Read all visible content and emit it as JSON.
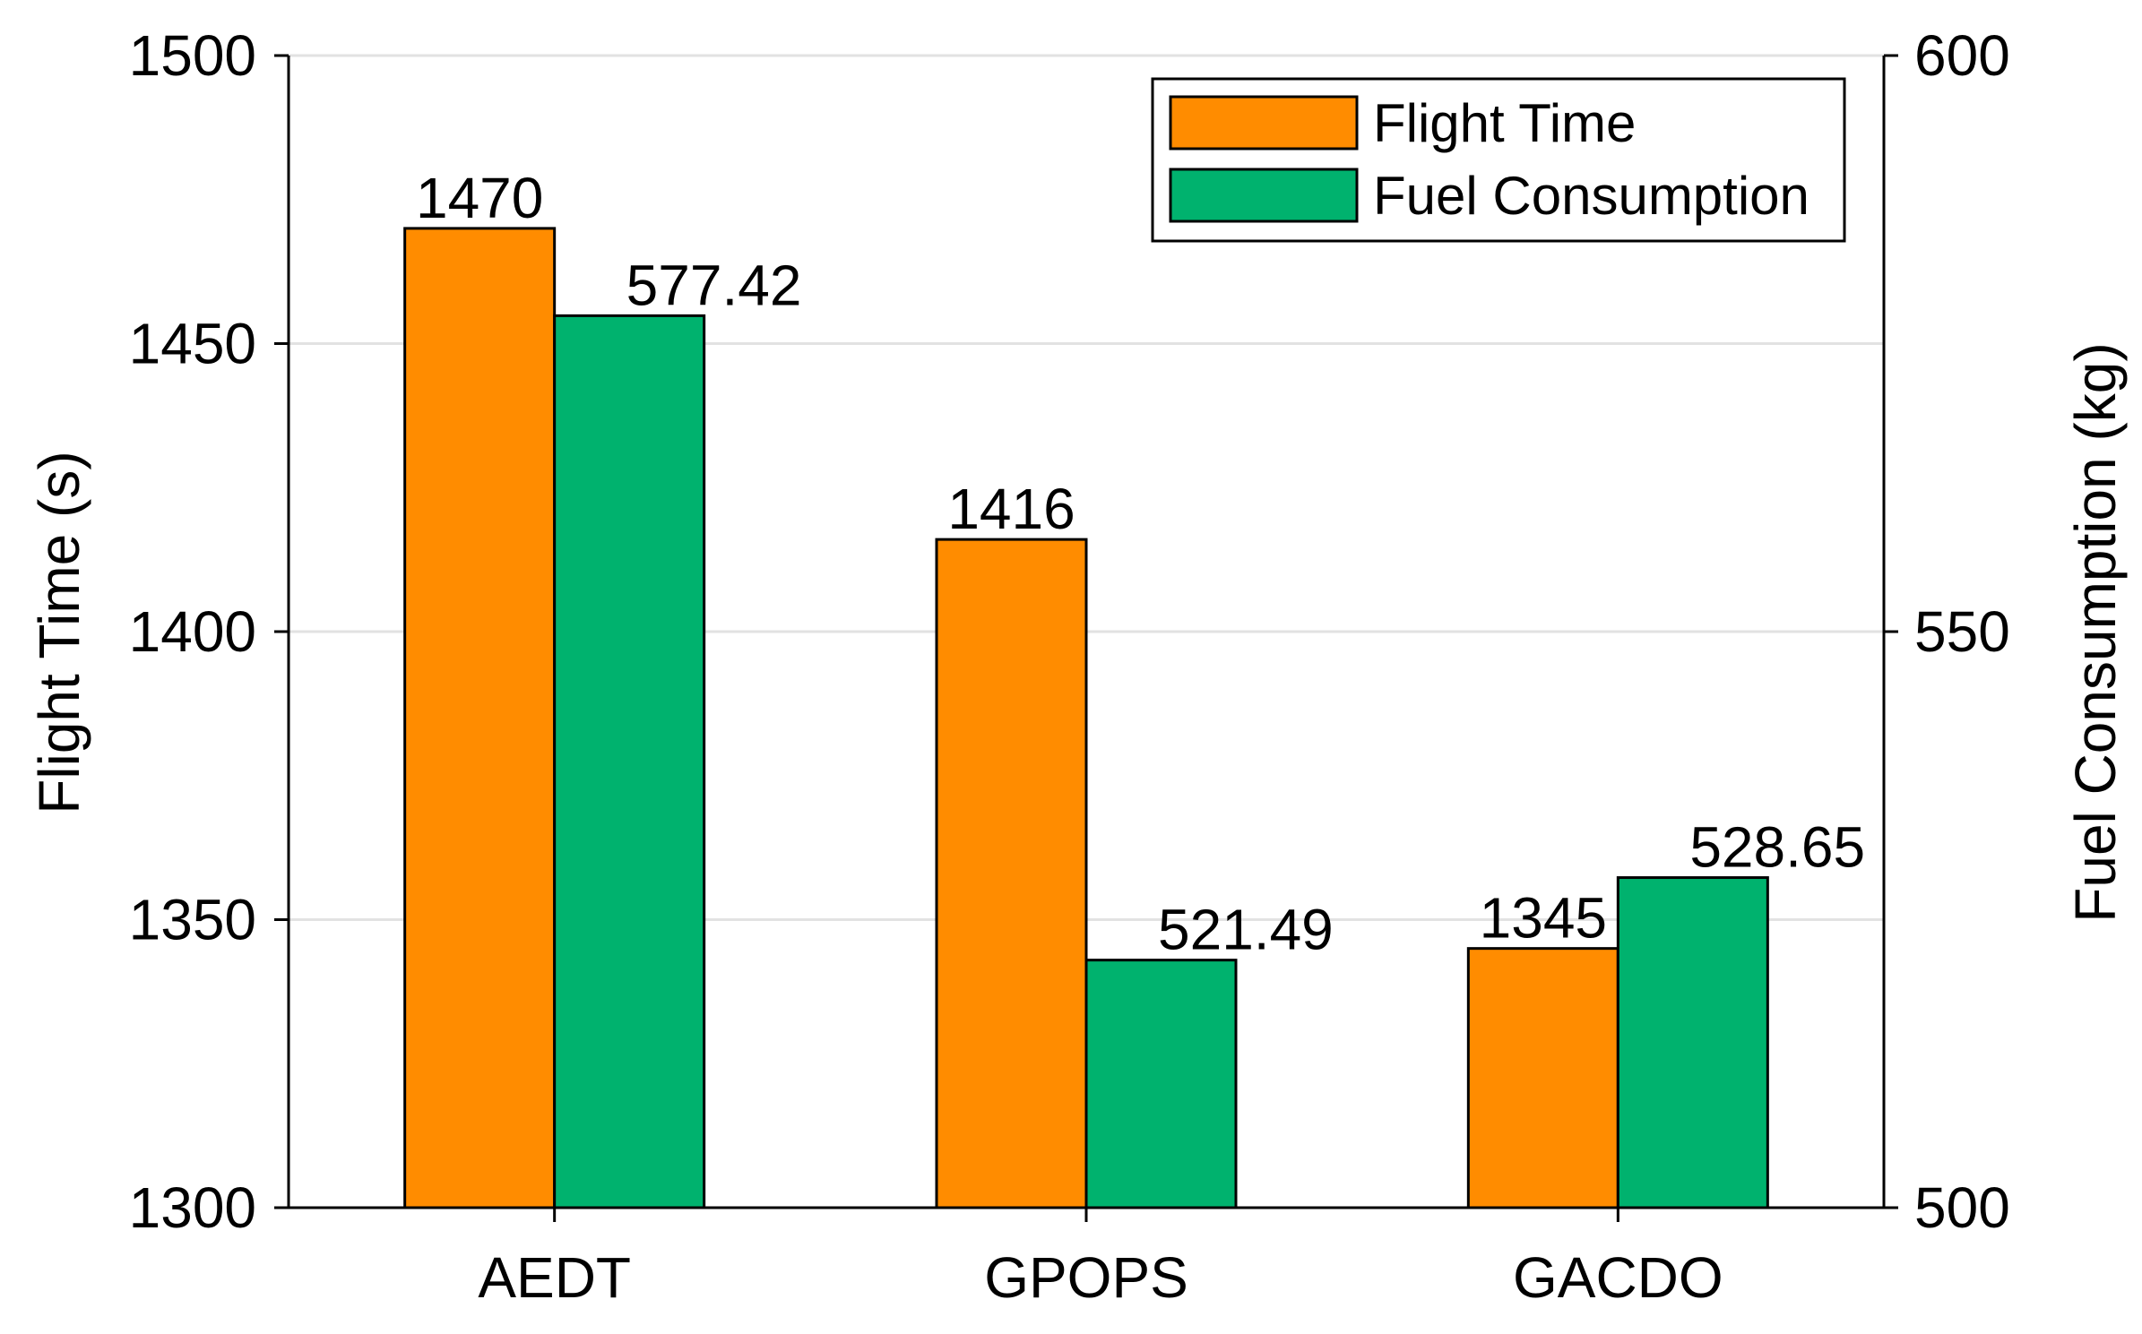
{
  "chart_data": {
    "type": "bar",
    "categories": [
      "AEDT",
      "GPOPS",
      "GACDO"
    ],
    "series": [
      {
        "name": "Flight Time",
        "axis": "left",
        "color": "#FF8C00",
        "values": [
          1470,
          1416,
          1345
        ],
        "labels": [
          "1470",
          "1416",
          "1345"
        ]
      },
      {
        "name": "Fuel Consumption",
        "axis": "right",
        "color": "#00B26E",
        "values": [
          577.42,
          521.49,
          528.65
        ],
        "labels": [
          "577.42",
          "521.49",
          "528.65"
        ]
      }
    ],
    "y_left": {
      "label": "Flight Time (s)",
      "ylim": [
        1300,
        1500
      ],
      "ticks": [
        1300,
        1350,
        1400,
        1450,
        1500
      ],
      "tick_labels": [
        "1300",
        "1350",
        "1400",
        "1450",
        "1500"
      ]
    },
    "y_right": {
      "label": "Fuel Consumption (kg)",
      "ylim": [
        500,
        600
      ],
      "ticks": [
        500,
        550,
        600
      ],
      "tick_labels": [
        "500",
        "550",
        "600"
      ]
    },
    "grid": true,
    "legend": "top-right"
  }
}
